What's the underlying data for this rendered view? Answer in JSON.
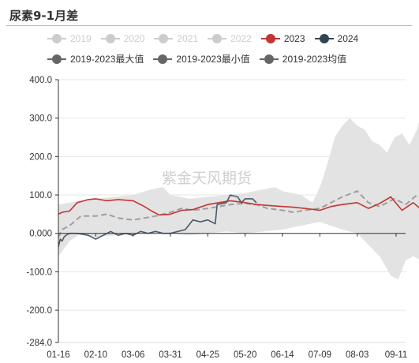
{
  "header": {
    "title": "尿素9-1月差"
  },
  "legend": {
    "items": [
      {
        "label": "2019",
        "color": "#cccccc",
        "text_color": "#cccccc"
      },
      {
        "label": "2020",
        "color": "#cccccc",
        "text_color": "#cccccc"
      },
      {
        "label": "2021",
        "color": "#cccccc",
        "text_color": "#cccccc"
      },
      {
        "label": "2022",
        "color": "#cccccc",
        "text_color": "#cccccc"
      },
      {
        "label": "2023",
        "color": "#c23531",
        "text_color": "#333333"
      },
      {
        "label": "2024",
        "color": "#2f4554",
        "text_color": "#333333"
      },
      {
        "label": "2019-2023最大值",
        "color": "#666666",
        "text_color": "#333333"
      },
      {
        "label": "2019-2023最小值",
        "color": "#666666",
        "text_color": "#333333"
      },
      {
        "label": "2019-2023均值",
        "color": "#666666",
        "text_color": "#333333"
      }
    ]
  },
  "watermark": "紫金天风期货",
  "chart_data": {
    "type": "line",
    "title": "尿素9-1月差",
    "x_categories": [
      "01-16",
      "02-10",
      "03-06",
      "03-31",
      "04-25",
      "05-20",
      "06-14",
      "07-09",
      "08-03",
      "09-11"
    ],
    "ylim": [
      -284,
      400
    ],
    "yticks": [
      {
        "value": 400,
        "label": "400.0"
      },
      {
        "value": 300,
        "label": "300.0"
      },
      {
        "value": 200,
        "label": "200.0"
      },
      {
        "value": 100,
        "label": "100.0"
      },
      {
        "value": 0,
        "label": "0.000"
      },
      {
        "value": -100,
        "label": "-100.0"
      },
      {
        "value": -200,
        "label": "-200.0"
      },
      {
        "value": -284,
        "label": "-284.0"
      }
    ],
    "grid": true,
    "series_2023": {
      "name": "2023",
      "points": [
        [
          0,
          50
        ],
        [
          0.1,
          55
        ],
        [
          0.3,
          58
        ],
        [
          0.5,
          80
        ],
        [
          0.8,
          88
        ],
        [
          1.0,
          90
        ],
        [
          1.3,
          85
        ],
        [
          1.6,
          88
        ],
        [
          2.0,
          85
        ],
        [
          2.3,
          70
        ],
        [
          2.5,
          58
        ],
        [
          2.7,
          48
        ],
        [
          3.0,
          50
        ],
        [
          3.3,
          60
        ],
        [
          3.6,
          62
        ],
        [
          4.0,
          75
        ],
        [
          4.3,
          80
        ],
        [
          4.6,
          85
        ],
        [
          5.0,
          80
        ],
        [
          5.3,
          75
        ],
        [
          5.7,
          72
        ],
        [
          6.0,
          70
        ],
        [
          6.3,
          68
        ],
        [
          6.6,
          65
        ],
        [
          7.0,
          60
        ],
        [
          7.3,
          70
        ],
        [
          7.6,
          75
        ],
        [
          8.0,
          80
        ],
        [
          8.3,
          65
        ],
        [
          8.6,
          78
        ],
        [
          8.9,
          95
        ],
        [
          9.2,
          60
        ],
        [
          9.5,
          80
        ],
        [
          9.8,
          55
        ],
        [
          10.0,
          40
        ]
      ]
    },
    "series_2024": {
      "name": "2024",
      "points": [
        [
          0,
          -35
        ],
        [
          0.05,
          -15
        ],
        [
          0.1,
          -20
        ],
        [
          0.15,
          -10
        ],
        [
          0.2,
          -5
        ],
        [
          0.3,
          0
        ],
        [
          0.5,
          0
        ],
        [
          0.8,
          -5
        ],
        [
          1.0,
          -15
        ],
        [
          1.2,
          -5
        ],
        [
          1.4,
          5
        ],
        [
          1.6,
          -5
        ],
        [
          1.8,
          0
        ],
        [
          2.0,
          -5
        ],
        [
          2.2,
          5
        ],
        [
          2.4,
          0
        ],
        [
          2.6,
          5
        ],
        [
          2.8,
          0
        ],
        [
          3.0,
          0
        ],
        [
          3.2,
          5
        ],
        [
          3.4,
          10
        ],
        [
          3.6,
          35
        ],
        [
          3.8,
          30
        ],
        [
          4.0,
          35
        ],
        [
          4.2,
          25
        ],
        [
          4.25,
          75
        ],
        [
          4.5,
          80
        ],
        [
          4.6,
          100
        ],
        [
          4.8,
          95
        ],
        [
          4.9,
          80
        ],
        [
          5.0,
          90
        ],
        [
          5.2,
          90
        ],
        [
          5.3,
          80
        ]
      ]
    },
    "series_mean": {
      "name": "2019-2023均值",
      "points": [
        [
          0,
          -10
        ],
        [
          0.1,
          10
        ],
        [
          0.3,
          20
        ],
        [
          0.6,
          45
        ],
        [
          1.0,
          45
        ],
        [
          1.3,
          50
        ],
        [
          1.6,
          40
        ],
        [
          2.0,
          35
        ],
        [
          2.3,
          40
        ],
        [
          2.6,
          45
        ],
        [
          3.0,
          55
        ],
        [
          3.3,
          65
        ],
        [
          3.6,
          60
        ],
        [
          4.0,
          65
        ],
        [
          4.3,
          70
        ],
        [
          4.6,
          75
        ],
        [
          5.0,
          78
        ],
        [
          5.3,
          75
        ],
        [
          5.6,
          65
        ],
        [
          6.0,
          60
        ],
        [
          6.3,
          55
        ],
        [
          6.6,
          60
        ],
        [
          7.0,
          65
        ],
        [
          7.3,
          80
        ],
        [
          7.6,
          95
        ],
        [
          8.0,
          110
        ],
        [
          8.3,
          80
        ],
        [
          8.6,
          70
        ],
        [
          9.0,
          90
        ],
        [
          9.3,
          75
        ],
        [
          9.6,
          100
        ],
        [
          9.8,
          90
        ],
        [
          10.0,
          95
        ]
      ]
    },
    "band_max": {
      "name": "2019-2023最大值",
      "points": [
        [
          0,
          75
        ],
        [
          0.3,
          80
        ],
        [
          0.6,
          85
        ],
        [
          1.0,
          90
        ],
        [
          1.5,
          95
        ],
        [
          2.0,
          100
        ],
        [
          2.5,
          115
        ],
        [
          2.8,
          120
        ],
        [
          3.0,
          100
        ],
        [
          3.5,
          90
        ],
        [
          4.0,
          95
        ],
        [
          4.5,
          100
        ],
        [
          5.0,
          105
        ],
        [
          5.5,
          115
        ],
        [
          5.8,
          120
        ],
        [
          6.0,
          110
        ],
        [
          6.5,
          100
        ],
        [
          6.8,
          80
        ],
        [
          7.0,
          120
        ],
        [
          7.2,
          180
        ],
        [
          7.4,
          250
        ],
        [
          7.6,
          280
        ],
        [
          7.8,
          300
        ],
        [
          8.0,
          280
        ],
        [
          8.2,
          270
        ],
        [
          8.4,
          240
        ],
        [
          8.6,
          230
        ],
        [
          8.8,
          210
        ],
        [
          9.0,
          250
        ],
        [
          9.2,
          260
        ],
        [
          9.4,
          230
        ],
        [
          9.6,
          270
        ],
        [
          9.8,
          350
        ],
        [
          9.9,
          395
        ],
        [
          10.0,
          400
        ]
      ]
    },
    "band_min": {
      "name": "2019-2023最小值",
      "points": [
        [
          0,
          -60
        ],
        [
          0.3,
          -20
        ],
        [
          0.6,
          0
        ],
        [
          1.0,
          -10
        ],
        [
          1.5,
          -5
        ],
        [
          2.0,
          0
        ],
        [
          2.5,
          5
        ],
        [
          3.0,
          0
        ],
        [
          3.5,
          -5
        ],
        [
          4.0,
          0
        ],
        [
          4.5,
          5
        ],
        [
          5.0,
          0
        ],
        [
          5.5,
          5
        ],
        [
          6.0,
          10
        ],
        [
          6.5,
          20
        ],
        [
          7.0,
          30
        ],
        [
          7.3,
          20
        ],
        [
          7.6,
          10
        ],
        [
          8.0,
          0
        ],
        [
          8.3,
          -30
        ],
        [
          8.6,
          -60
        ],
        [
          8.9,
          -110
        ],
        [
          9.1,
          -120
        ],
        [
          9.3,
          -70
        ],
        [
          9.5,
          -60
        ],
        [
          9.7,
          -70
        ],
        [
          10.0,
          -80
        ]
      ]
    }
  }
}
